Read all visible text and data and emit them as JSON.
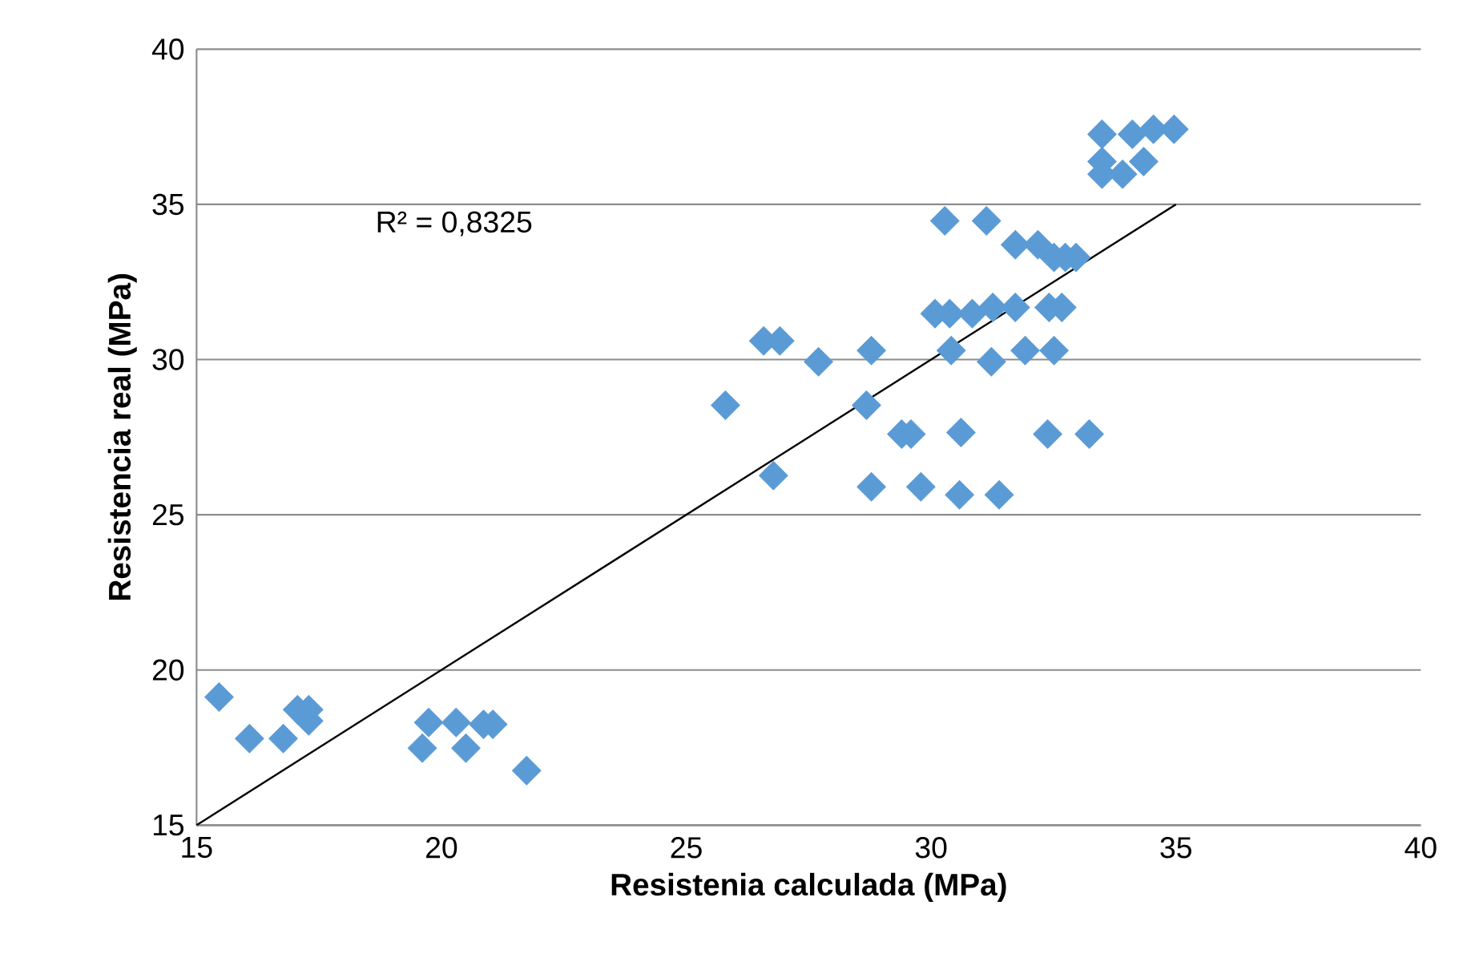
{
  "chart_data": {
    "type": "scatter",
    "xlabel": "Resistenia calculada (MPa)",
    "ylabel": "Resistencia real (MPa)",
    "xlim": [
      15,
      40
    ],
    "xticks": [
      15,
      20,
      25,
      30,
      35,
      40
    ],
    "ylim": [
      15,
      40
    ],
    "yticks": [
      15,
      20,
      25,
      30,
      35,
      40
    ],
    "grid": "y",
    "marker": "diamond",
    "annotations": [
      "R² = 0,8325"
    ],
    "series": [
      {
        "color": "#5b9bd5",
        "x": [
          15.46,
          16.08,
          16.77,
          17.06,
          17.29,
          17.29,
          19.61,
          19.74,
          20.3,
          20.5,
          20.86,
          21.05,
          21.74,
          25.8,
          26.58,
          26.91,
          26.78,
          27.7,
          28.78,
          28.68,
          28.78,
          29.4,
          29.59,
          29.79,
          30.28,
          30.08,
          30.38,
          30.41,
          30.61,
          30.58,
          30.84,
          31.13,
          31.23,
          31.26,
          31.39,
          31.72,
          31.72,
          31.92,
          32.18,
          32.38,
          32.41,
          32.51,
          32.51,
          32.67,
          32.74,
          32.96,
          33.23,
          33.49,
          33.49,
          33.49,
          33.91,
          34.11,
          34.34,
          34.54,
          34.96
        ],
        "values": [
          19.13,
          17.79,
          17.79,
          18.72,
          18.72,
          18.36,
          17.48,
          18.31,
          18.31,
          17.48,
          18.25,
          18.25,
          16.76,
          28.53,
          30.6,
          30.6,
          26.26,
          29.93,
          30.29,
          28.53,
          25.9,
          27.6,
          27.6,
          25.9,
          34.47,
          31.48,
          31.48,
          30.29,
          27.65,
          25.64,
          31.48,
          34.47,
          29.93,
          31.68,
          25.64,
          31.68,
          33.7,
          30.29,
          33.7,
          27.6,
          31.68,
          33.29,
          30.29,
          31.68,
          33.29,
          33.29,
          27.6,
          37.26,
          36.38,
          35.97,
          35.97,
          37.26,
          36.38,
          37.42,
          37.42
        ]
      },
      {
        "type": "line",
        "color": "#000000",
        "marker": "none",
        "x": [
          15,
          35
        ],
        "values": [
          15,
          35
        ]
      }
    ]
  }
}
